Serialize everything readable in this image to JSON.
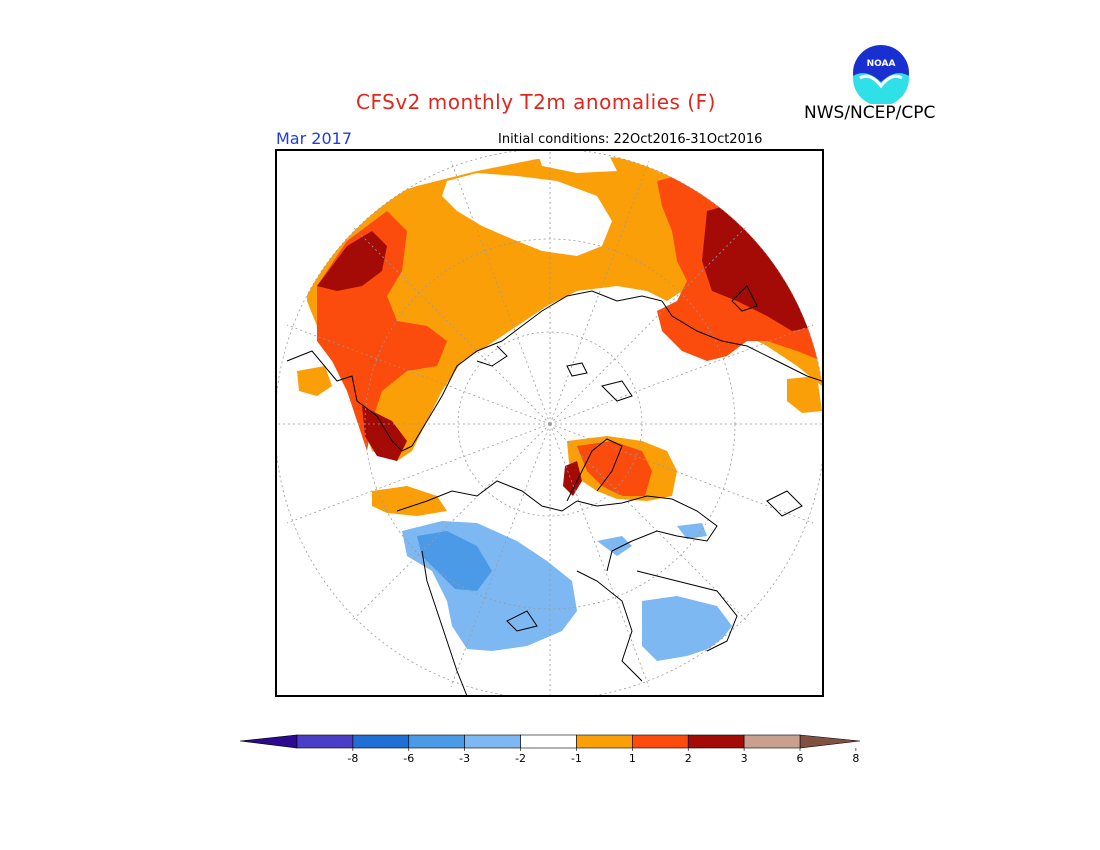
{
  "header": {
    "title": "CFSv2 monthly T2m anomalies (F)",
    "agency": "NWS/NCEP/CPC",
    "logo_text": "NOAA",
    "valid_month": "Mar 2017",
    "initial_conditions": "Initial conditions: 22Oct2016-31Oct2016"
  },
  "colors": {
    "title": "#e0261d",
    "month": "#1f3fd8",
    "neutral": "#ffffff",
    "warm_1_2": "#fb9f08",
    "warm_2_3": "#fb4b0d",
    "warm_3_6": "#a40b07",
    "warm_6_8": "#c8a08d",
    "warm_gt8": "#805040",
    "cold_m1_m2": "#7db8f2",
    "cold_m2_m3": "#4b9ae8",
    "cold_m3_m6": "#1f6fd5",
    "cold_m6_m8": "#4a3ec8",
    "cold_lt_m8": "#2c0a8f"
  },
  "legend": {
    "tick_labels": [
      "-8",
      "-6",
      "-3",
      "-2",
      "-1",
      "1",
      "2",
      "3",
      "6",
      "8"
    ],
    "bins": [
      {
        "color": "#4a3ec8"
      },
      {
        "color": "#1f6fd5"
      },
      {
        "color": "#4b9ae8"
      },
      {
        "color": "#7db8f2"
      },
      {
        "color": "#ffffff"
      },
      {
        "color": "#fb9f08"
      },
      {
        "color": "#fb4b0d"
      },
      {
        "color": "#a40b07"
      },
      {
        "color": "#c8a08d"
      }
    ],
    "left_arrow_color": "#2c0a8f",
    "right_arrow_color": "#805040"
  }
}
